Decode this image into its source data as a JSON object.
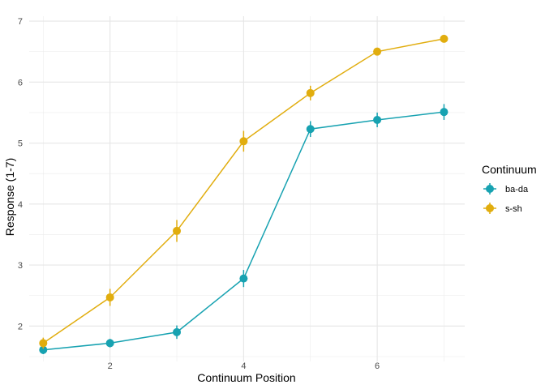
{
  "chart_data": {
    "type": "line",
    "title": "",
    "xlabel": "Continuum Position",
    "ylabel": "Response (1-7)",
    "xlim": [
      0.79,
      7.31
    ],
    "ylim": [
      1.42,
      7.08
    ],
    "x_ticks": [
      2,
      4,
      6
    ],
    "y_ticks": [
      2,
      3,
      4,
      5,
      6,
      7
    ],
    "grid": true,
    "legend": {
      "title": "Continuum",
      "position": "right"
    },
    "x": [
      1,
      2,
      3,
      4,
      5,
      6,
      7
    ],
    "series": [
      {
        "name": "ba-da",
        "color": "#17a2b1",
        "values": [
          1.61,
          1.72,
          1.9,
          2.78,
          5.23,
          5.38,
          5.51
        ],
        "errors": [
          0.07,
          0.07,
          0.11,
          0.14,
          0.13,
          0.12,
          0.13
        ]
      },
      {
        "name": "s-sh",
        "color": "#e1ad0e",
        "values": [
          1.72,
          2.47,
          3.56,
          5.03,
          5.82,
          6.5,
          6.71
        ],
        "errors": [
          0.09,
          0.14,
          0.18,
          0.17,
          0.12,
          0.05,
          0.05
        ]
      }
    ]
  }
}
